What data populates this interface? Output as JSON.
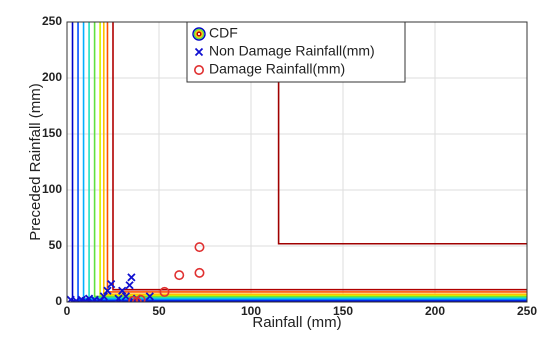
{
  "chart_data": {
    "type": "scatter",
    "xlabel": "Rainfall (mm)",
    "ylabel": "Preceded Rainfall (mm)",
    "xlim": [
      0,
      250
    ],
    "ylim": [
      0,
      250
    ],
    "xticks": [
      0,
      50,
      100,
      150,
      200,
      250
    ],
    "yticks": [
      0,
      50,
      100,
      150,
      200,
      250
    ],
    "grid": true,
    "legend": "upper center",
    "series": [
      {
        "name": "CDF",
        "type": "contour",
        "lines": [
          {
            "color": "#0000c8",
            "x": [
              3,
              3,
              250
            ],
            "y": [
              250,
              1,
              1
            ]
          },
          {
            "color": "#0050ff",
            "x": [
              6,
              6,
              250
            ],
            "y": [
              250,
              2,
              2
            ]
          },
          {
            "color": "#00b0ff",
            "x": [
              9,
              9,
              250
            ],
            "y": [
              250,
              3,
              3
            ]
          },
          {
            "color": "#20e0c0",
            "x": [
              12,
              12,
              250
            ],
            "y": [
              250,
              4,
              4
            ]
          },
          {
            "color": "#60e040",
            "x": [
              15,
              15,
              250
            ],
            "y": [
              250,
              5,
              5
            ]
          },
          {
            "color": "#d0f000",
            "x": [
              18,
              18,
              250
            ],
            "y": [
              250,
              6,
              6
            ]
          },
          {
            "color": "#ffc000",
            "x": [
              20,
              20,
              250
            ],
            "y": [
              250,
              7,
              7
            ]
          },
          {
            "color": "#ff5000",
            "x": [
              22,
              22,
              250
            ],
            "y": [
              250,
              9,
              9
            ]
          },
          {
            "color": "#b00000",
            "x": [
              25,
              25,
              250
            ],
            "y": [
              250,
              11,
              11
            ]
          },
          {
            "color": "#a00000",
            "x": [
              115,
              115,
              250
            ],
            "y": [
              250,
              52,
              52
            ]
          }
        ]
      },
      {
        "name": "Non Damage Rainfall(mm)",
        "color": "#1010d0",
        "marker": "x",
        "x": [
          2,
          5,
          8,
          10,
          12,
          15,
          18,
          20,
          22,
          24,
          28,
          30,
          32,
          34,
          35,
          36,
          38,
          45
        ],
        "y": [
          2,
          1,
          2,
          1,
          3,
          2,
          1,
          5,
          10,
          16,
          3,
          10,
          5,
          15,
          22,
          1,
          3,
          5
        ]
      },
      {
        "name": "Damage Rainfall(mm)",
        "color": "#e03030",
        "marker": "o",
        "x": [
          36,
          38,
          40,
          53,
          61,
          72,
          72
        ],
        "y": [
          1,
          0,
          2,
          9,
          24,
          49,
          26
        ]
      }
    ]
  }
}
